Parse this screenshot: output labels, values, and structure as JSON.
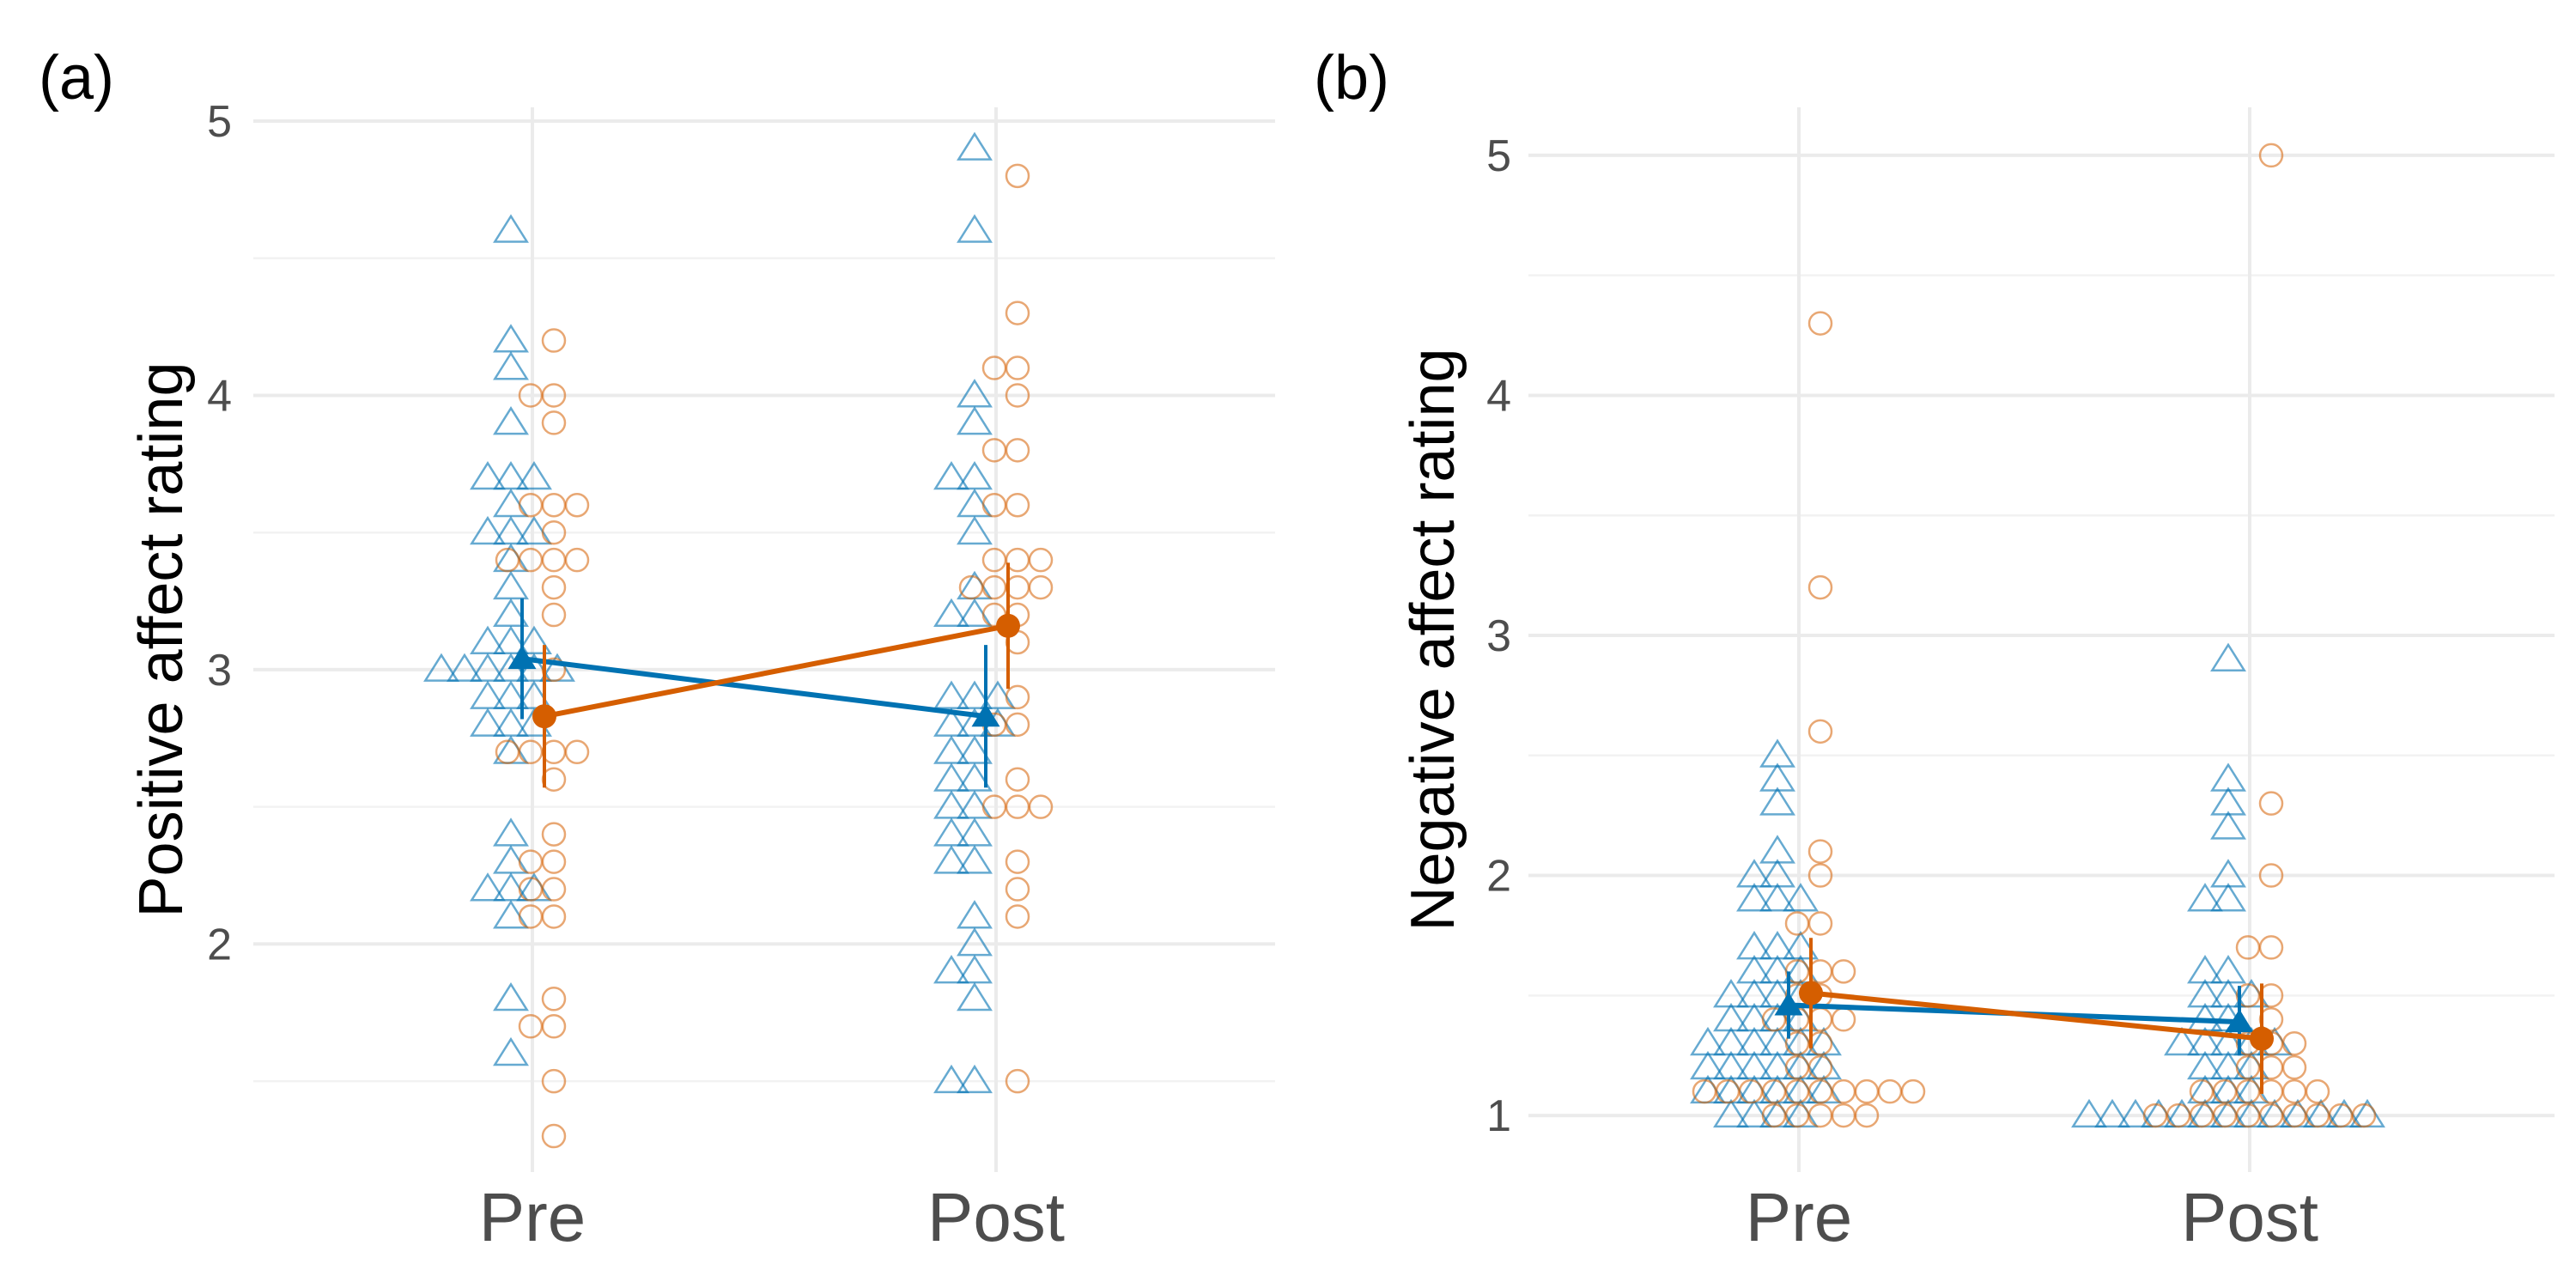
{
  "chart_data": [
    {
      "type": "scatter",
      "panel_label": "(a)",
      "ylabel": "Positive affect rating",
      "xlabel": "",
      "categories": [
        "Pre",
        "Post"
      ],
      "ylim": [
        1.2,
        5.05
      ],
      "yticks": [
        2,
        3,
        4,
        5
      ],
      "grid": true,
      "series": [
        {
          "marker": "triangle",
          "color": "#0072B2",
          "points": {
            "Pre": [
              4.6,
              4.2,
              4.1,
              3.9,
              3.7,
              3.7,
              3.7,
              3.6,
              3.5,
              3.5,
              3.5,
              3.4,
              3.3,
              3.2,
              3.1,
              3.1,
              3.1,
              3.0,
              3.0,
              3.0,
              3.0,
              3.0,
              3.0,
              2.9,
              2.9,
              2.9,
              2.8,
              2.8,
              2.8,
              2.7,
              2.4,
              2.3,
              2.2,
              2.2,
              2.2,
              2.1,
              1.8,
              1.6
            ],
            "Post": [
              4.9,
              4.6,
              4.0,
              3.9,
              3.7,
              3.7,
              3.6,
              3.5,
              3.3,
              3.2,
              3.2,
              2.9,
              2.9,
              2.9,
              2.8,
              2.8,
              2.8,
              2.7,
              2.7,
              2.6,
              2.6,
              2.5,
              2.5,
              2.4,
              2.4,
              2.3,
              2.3,
              2.1,
              2.0,
              1.9,
              1.9,
              1.8,
              1.5,
              1.5
            ]
          },
          "mean": {
            "Pre": 3.04,
            "Post": 2.83
          },
          "ci_low": {
            "Pre": 2.82,
            "Post": 2.57
          },
          "ci_high": {
            "Pre": 3.26,
            "Post": 3.09
          }
        },
        {
          "marker": "circle",
          "color": "#D55E00",
          "points": {
            "Pre": [
              4.2,
              4.0,
              4.0,
              3.9,
              3.6,
              3.6,
              3.6,
              3.5,
              3.4,
              3.4,
              3.4,
              3.4,
              3.3,
              3.2,
              3.0,
              2.7,
              2.7,
              2.7,
              2.7,
              2.6,
              2.4,
              2.3,
              2.3,
              2.2,
              2.2,
              2.1,
              2.1,
              1.8,
              1.7,
              1.7,
              1.5,
              1.3
            ],
            "Post": [
              4.8,
              4.3,
              4.1,
              4.1,
              4.0,
              3.8,
              3.8,
              3.6,
              3.6,
              3.4,
              3.4,
              3.4,
              3.3,
              3.3,
              3.3,
              3.3,
              3.2,
              3.2,
              3.1,
              2.9,
              2.8,
              2.8,
              2.6,
              2.5,
              2.5,
              2.5,
              2.3,
              2.2,
              2.1,
              1.5
            ]
          },
          "mean": {
            "Pre": 2.83,
            "Post": 3.16
          },
          "ci_low": {
            "Pre": 2.57,
            "Post": 2.93
          },
          "ci_high": {
            "Pre": 3.09,
            "Post": 3.39
          }
        }
      ]
    },
    {
      "type": "scatter",
      "panel_label": "(b)",
      "ylabel": "Negative affect rating",
      "xlabel": "",
      "categories": [
        "Pre",
        "Post"
      ],
      "ylim": [
        0.8,
        5.2
      ],
      "yticks": [
        1,
        2,
        3,
        4,
        5
      ],
      "grid": true,
      "series": [
        {
          "marker": "triangle",
          "color": "#0072B2",
          "points": {
            "Pre": [
              2.5,
              2.4,
              2.3,
              2.1,
              2.0,
              2.0,
              1.9,
              1.9,
              1.9,
              1.7,
              1.7,
              1.7,
              1.6,
              1.6,
              1.6,
              1.5,
              1.5,
              1.5,
              1.5,
              1.4,
              1.4,
              1.4,
              1.4,
              1.3,
              1.3,
              1.3,
              1.3,
              1.3,
              1.3,
              1.2,
              1.2,
              1.2,
              1.2,
              1.2,
              1.2,
              1.1,
              1.1,
              1.1,
              1.1,
              1.1,
              1.1,
              1.0,
              1.0,
              1.0,
              1.0
            ],
            "Post": [
              2.9,
              2.4,
              2.3,
              2.2,
              2.0,
              1.9,
              1.9,
              1.6,
              1.6,
              1.5,
              1.5,
              1.5,
              1.4,
              1.4,
              1.3,
              1.3,
              1.3,
              1.3,
              1.3,
              1.2,
              1.2,
              1.2,
              1.1,
              1.1,
              1.1,
              1.0,
              1.0,
              1.0,
              1.0,
              1.0,
              1.0,
              1.0,
              1.0,
              1.0,
              1.0,
              1.0,
              1.0,
              1.0
            ]
          },
          "mean": {
            "Pre": 1.46,
            "Post": 1.39
          },
          "ci_low": {
            "Pre": 1.32,
            "Post": 1.25
          },
          "ci_high": {
            "Pre": 1.6,
            "Post": 1.54
          }
        },
        {
          "marker": "circle",
          "color": "#D55E00",
          "points": {
            "Pre": [
              4.3,
              3.2,
              2.6,
              2.1,
              2.0,
              1.8,
              1.8,
              1.6,
              1.6,
              1.6,
              1.5,
              1.5,
              1.4,
              1.4,
              1.4,
              1.4,
              1.3,
              1.3,
              1.2,
              1.2,
              1.1,
              1.1,
              1.1,
              1.1,
              1.1,
              1.1,
              1.1,
              1.1,
              1.1,
              1.1,
              1.0,
              1.0,
              1.0,
              1.0,
              1.0
            ],
            "Post": [
              5.0,
              2.3,
              2.0,
              1.7,
              1.7,
              1.5,
              1.5,
              1.4,
              1.3,
              1.3,
              1.3,
              1.2,
              1.2,
              1.2,
              1.1,
              1.1,
              1.1,
              1.1,
              1.1,
              1.1,
              1.0,
              1.0,
              1.0,
              1.0,
              1.0,
              1.0,
              1.0,
              1.0,
              1.0,
              1.0
            ]
          },
          "mean": {
            "Pre": 1.51,
            "Post": 1.32
          },
          "ci_low": {
            "Pre": 1.28,
            "Post": 1.09
          },
          "ci_high": {
            "Pre": 1.74,
            "Post": 1.55
          }
        }
      ]
    }
  ]
}
